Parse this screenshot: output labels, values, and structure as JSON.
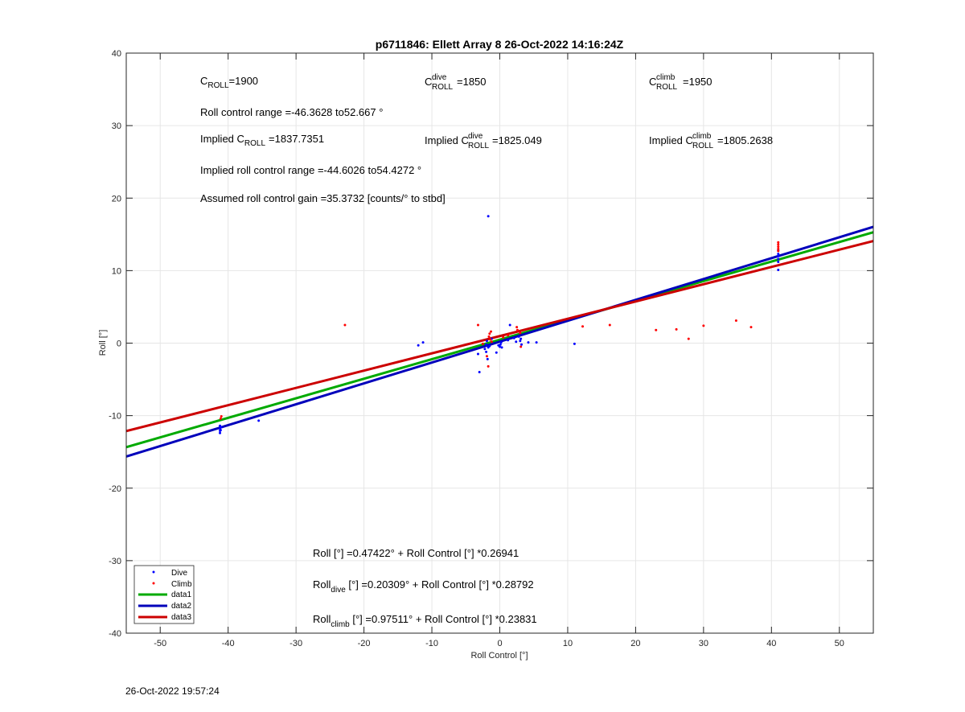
{
  "footer_timestamp": "26-Oct-2022 19:57:24",
  "chart_data": {
    "type": "scatter",
    "title": "p6711846: Ellett Array 8 26-Oct-2022 14:16:24Z",
    "xlabel": "Roll Control [°]",
    "ylabel": "Roll [°]",
    "xlim": [
      -55,
      55
    ],
    "ylim": [
      -40,
      40
    ],
    "xticks": [
      -50,
      -40,
      -30,
      -20,
      -10,
      0,
      10,
      20,
      30,
      40,
      50
    ],
    "yticks": [
      -40,
      -30,
      -20,
      -10,
      0,
      10,
      20,
      30,
      40
    ],
    "grid": true,
    "legend_position": "bottom-left",
    "annotations": {
      "c_roll": {
        "base": "C",
        "sub": "ROLL",
        "sup": "",
        "value": "=1900"
      },
      "c_roll_dive": {
        "base": "C",
        "sub": "ROLL",
        "sup": "dive",
        "value": "=1850"
      },
      "c_roll_climb": {
        "base": "C",
        "sub": "ROLL",
        "sup": "climb",
        "value": "=1950"
      },
      "roll_control_range": "Roll control range =-46.3628 to52.667 °",
      "implied_c_roll": {
        "prefix": "Implied C",
        "sub": "ROLL",
        "sup": "",
        "value": "=1837.7351"
      },
      "implied_c_roll_dive": {
        "prefix": "Implied C",
        "sub": "ROLL",
        "sup": "dive",
        "value": "=1825.049"
      },
      "implied_c_roll_climb": {
        "prefix": "Implied C",
        "sub": "ROLL",
        "sup": "climb",
        "value": "=1805.2638"
      },
      "implied_range": "Implied roll control range =-44.6026 to54.4272 °",
      "gain": "Assumed roll control gain =35.3732 [counts/° to stbd]",
      "fit_all": "Roll [°] =0.47422° + Roll Control [°] *0.26941",
      "fit_dive": {
        "base": "Roll",
        "sub": "dive",
        "rest": " [°] =0.20309° + Roll Control [°] *0.28792"
      },
      "fit_climb": {
        "base": "Roll",
        "sub": "climb",
        "rest": " [°] =0.97511° + Roll Control [°] *0.23831"
      }
    },
    "series": [
      {
        "name": "Dive",
        "kind": "points",
        "color": "#0000ff",
        "points": [
          [
            -41.2,
            -11.4
          ],
          [
            -41.2,
            -11.8
          ],
          [
            -41.2,
            -12.1
          ],
          [
            -41.2,
            -12.4
          ],
          [
            -41.0,
            -11.6
          ],
          [
            -41.1,
            -12.0
          ],
          [
            -35.5,
            -10.7
          ],
          [
            -12.0,
            -0.3
          ],
          [
            -11.3,
            0.1
          ],
          [
            -3.2,
            -1.5
          ],
          [
            -3.0,
            -4.0
          ],
          [
            -2.2,
            -0.8
          ],
          [
            -2.0,
            -0.2
          ],
          [
            -2.0,
            -1.2
          ],
          [
            -1.9,
            0.3
          ],
          [
            -1.8,
            -2.2
          ],
          [
            -1.7,
            -0.6
          ],
          [
            -1.7,
            17.5
          ],
          [
            -1.5,
            -0.4
          ],
          [
            -1.2,
            0.6
          ],
          [
            -0.5,
            -1.3
          ],
          [
            -0.2,
            -0.3
          ],
          [
            0,
            -0.5
          ],
          [
            0.1,
            -0.2
          ],
          [
            0.2,
            0.1
          ],
          [
            0.3,
            -0.6
          ],
          [
            1.2,
            0.4
          ],
          [
            1.5,
            2.5
          ],
          [
            2.1,
            0.7
          ],
          [
            2.4,
            0.2
          ],
          [
            2.8,
            0.9
          ],
          [
            3.0,
            0.3
          ],
          [
            3.1,
            0.6
          ],
          [
            3.2,
            -0.2
          ],
          [
            4.2,
            0.1
          ],
          [
            5.4,
            0.1
          ],
          [
            11.0,
            -0.1
          ],
          [
            41.0,
            10.1
          ],
          [
            41.0,
            11.2
          ],
          [
            41.0,
            11.6
          ],
          [
            41.0,
            12.0
          ],
          [
            41.0,
            12.3
          ],
          [
            41.0,
            12.8
          ]
        ]
      },
      {
        "name": "Climb",
        "kind": "points",
        "color": "#ff0000",
        "points": [
          [
            -41.0,
            -10.1
          ],
          [
            -41.1,
            -10.4
          ],
          [
            -22.8,
            2.5
          ],
          [
            -3.2,
            2.5
          ],
          [
            -2.5,
            -0.1
          ],
          [
            -1.9,
            -1.8
          ],
          [
            -1.7,
            -3.2
          ],
          [
            -1.6,
            0.9
          ],
          [
            -1.5,
            1.3
          ],
          [
            -1.4,
            0.5
          ],
          [
            -1.3,
            1.6
          ],
          [
            -1.2,
            0.2
          ],
          [
            0.5,
            0.8
          ],
          [
            1.2,
            1.1
          ],
          [
            2.5,
            2.2
          ],
          [
            2.6,
            1.8
          ],
          [
            3.0,
            1.4
          ],
          [
            3.1,
            -0.5
          ],
          [
            12.2,
            2.3
          ],
          [
            16.2,
            2.5
          ],
          [
            23.0,
            1.8
          ],
          [
            26.0,
            1.9
          ],
          [
            27.8,
            0.6
          ],
          [
            30.0,
            2.4
          ],
          [
            34.8,
            3.1
          ],
          [
            37.0,
            2.2
          ],
          [
            41.0,
            13.3
          ],
          [
            41.0,
            13.6
          ],
          [
            41.0,
            13.9
          ],
          [
            41.0,
            13.0
          ],
          [
            41.0,
            12.7
          ]
        ]
      },
      {
        "name": "data1",
        "kind": "line",
        "color": "#00aa00",
        "intercept": 0.47422,
        "slope": 0.26941
      },
      {
        "name": "data2",
        "kind": "line",
        "color": "#0000bb",
        "intercept": 0.20309,
        "slope": 0.28792
      },
      {
        "name": "data3",
        "kind": "line",
        "color": "#cc0000",
        "intercept": 0.97511,
        "slope": 0.23831
      }
    ]
  }
}
